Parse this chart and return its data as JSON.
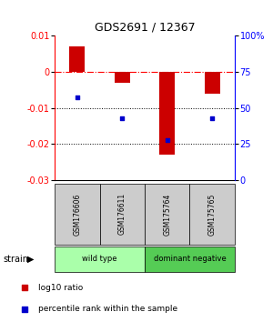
{
  "title": "GDS2691 / 12367",
  "samples": [
    "GSM176606",
    "GSM176611",
    "GSM175764",
    "GSM175765"
  ],
  "bar_values": [
    0.007,
    -0.003,
    -0.023,
    -0.006
  ],
  "percentile_values": [
    57,
    43,
    28,
    43
  ],
  "ylim_left": [
    -0.03,
    0.01
  ],
  "ylim_right": [
    0,
    100
  ],
  "bar_color": "#cc0000",
  "dot_color": "#0000cc",
  "groups": [
    {
      "label": "wild type",
      "samples": [
        0,
        1
      ],
      "color": "#aaffaa"
    },
    {
      "label": "dominant negative",
      "samples": [
        2,
        3
      ],
      "color": "#55cc55"
    }
  ],
  "group_label": "strain",
  "yticks_left": [
    0.01,
    0,
    -0.01,
    -0.02,
    -0.03
  ],
  "yticks_right": [
    100,
    75,
    50,
    25,
    0
  ],
  "hlines_dotted": [
    -0.01,
    -0.02
  ],
  "hline_dashdot": 0,
  "legend_items": [
    {
      "label": "log10 ratio",
      "color": "#cc0000"
    },
    {
      "label": "percentile rank within the sample",
      "color": "#0000cc"
    }
  ],
  "bar_width": 0.35,
  "sample_box_color": "#cccccc"
}
